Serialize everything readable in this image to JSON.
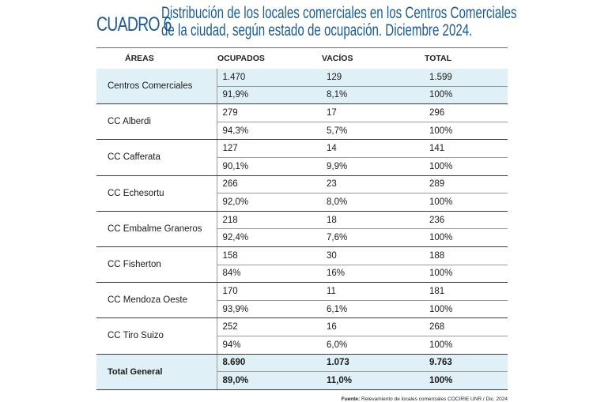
{
  "header": {
    "label": "CUADRO 6",
    "title_line1": "Distribución de los locales comerciales en los Centros Comerciales",
    "title_line2": "de la ciudad, según estado de ocupación. Diciembre 2024."
  },
  "columns": [
    "ÁREAS",
    "OCUPADOS",
    "VACÍOS",
    "TOTAL"
  ],
  "rows": [
    {
      "area": "Centros Comerciales",
      "counts": [
        "1.470",
        "129",
        "1.599"
      ],
      "pcts": [
        "91,9%",
        "8,1%",
        "100%"
      ]
    },
    {
      "area": "CC Alberdi",
      "counts": [
        "279",
        "17",
        "296"
      ],
      "pcts": [
        "94,3%",
        "5,7%",
        "100%"
      ]
    },
    {
      "area": "CC Cafferata",
      "counts": [
        "127",
        "14",
        "141"
      ],
      "pcts": [
        "90,1%",
        "9,9%",
        "100%"
      ]
    },
    {
      "area": "CC Echesortu",
      "counts": [
        "266",
        "23",
        "289"
      ],
      "pcts": [
        "92,0%",
        "8,0%",
        "100%"
      ]
    },
    {
      "area": "CC Embalme Graneros",
      "counts": [
        "218",
        "18",
        "236"
      ],
      "pcts": [
        "92,4%",
        "7,6%",
        "100%"
      ]
    },
    {
      "area": "CC Fisherton",
      "counts": [
        "158",
        "30",
        "188"
      ],
      "pcts": [
        "84%",
        "16%",
        "100%"
      ]
    },
    {
      "area": "CC Mendoza Oeste",
      "counts": [
        "170",
        "11",
        "181"
      ],
      "pcts": [
        "93,9%",
        "6,1%",
        "100%"
      ]
    },
    {
      "area": "CC Tiro Suizo",
      "counts": [
        "252",
        "16",
        "268"
      ],
      "pcts": [
        "94%",
        "6,0%",
        "100%"
      ]
    }
  ],
  "total": {
    "area": "Total General",
    "counts": [
      "8.690",
      "1.073",
      "9.763"
    ],
    "pcts": [
      "89,0%",
      "11,0%",
      "100%"
    ]
  },
  "footer": {
    "label": "Fuente:",
    "text": "Relevamiento de locales comerciales COCIRIE UNR / Dic. 2024"
  }
}
